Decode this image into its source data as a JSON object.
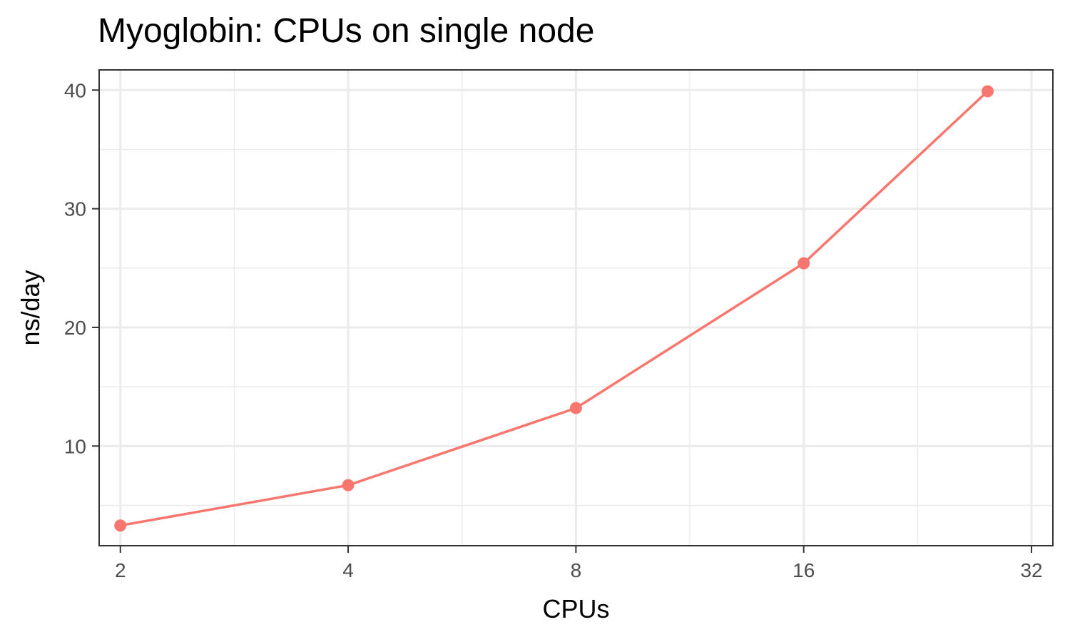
{
  "chart_data": {
    "type": "line",
    "title": "Myoglobin: CPUs on single node",
    "xlabel": "CPUs",
    "ylabel": "ns/day",
    "x_scale": "log2",
    "x_ticks": [
      2,
      4,
      8,
      16,
      32
    ],
    "y_ticks": [
      10,
      20,
      30,
      40
    ],
    "xlim": [
      1.875,
      34.15
    ],
    "ylim": [
      1.6,
      41.7
    ],
    "grid": true,
    "legend": "none",
    "series": [
      {
        "color": "#F8766D",
        "points": [
          {
            "x": 2,
            "y": 3.3
          },
          {
            "x": 4,
            "y": 6.7
          },
          {
            "x": 8,
            "y": 13.2
          },
          {
            "x": 16,
            "y": 25.4
          },
          {
            "x": 28,
            "y": 39.9
          }
        ]
      }
    ]
  }
}
